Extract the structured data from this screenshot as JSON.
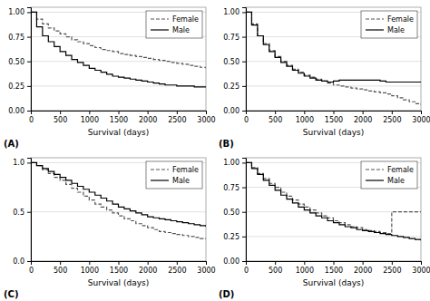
{
  "chart_data": [
    {
      "type": "step",
      "title": "(A)",
      "xlabel": "Survival (days)",
      "x": [
        0,
        100,
        200,
        300,
        400,
        500,
        600,
        700,
        800,
        900,
        1000,
        1100,
        1200,
        1300,
        1400,
        1500,
        1600,
        1700,
        1800,
        1900,
        2000,
        2100,
        2200,
        2300,
        2400,
        2500,
        2600,
        2700,
        2800,
        2900,
        3000
      ],
      "series": [
        {
          "name": "Female",
          "color": "#555555",
          "line_style": "dashed",
          "values": [
            1.0,
            0.93,
            0.88,
            0.84,
            0.81,
            0.78,
            0.75,
            0.72,
            0.7,
            0.68,
            0.66,
            0.64,
            0.62,
            0.61,
            0.6,
            0.58,
            0.57,
            0.56,
            0.55,
            0.54,
            0.53,
            0.52,
            0.51,
            0.5,
            0.49,
            0.48,
            0.47,
            0.46,
            0.45,
            0.44,
            0.43
          ]
        },
        {
          "name": "Male",
          "color": "#000000",
          "line_style": "solid",
          "values": [
            1.0,
            0.85,
            0.76,
            0.7,
            0.65,
            0.6,
            0.56,
            0.52,
            0.49,
            0.46,
            0.43,
            0.41,
            0.39,
            0.37,
            0.35,
            0.34,
            0.33,
            0.32,
            0.31,
            0.3,
            0.29,
            0.28,
            0.27,
            0.26,
            0.26,
            0.25,
            0.25,
            0.25,
            0.24,
            0.24,
            0.24
          ]
        }
      ],
      "xlim": [
        0,
        3000
      ],
      "xticks": [
        0,
        500,
        1000,
        1500,
        2000,
        2500,
        3000
      ],
      "ylim": [
        0,
        1.05
      ],
      "yticks": [
        {
          "value": 0.0,
          "label": "0.00"
        },
        {
          "value": 0.25,
          "label": "0.25"
        },
        {
          "value": 0.5,
          "label": "0.50"
        },
        {
          "value": 0.75,
          "label": "0.75"
        },
        {
          "value": 1.0,
          "label": "1.00"
        }
      ],
      "grid": true,
      "legend": "upper-right"
    },
    {
      "type": "step",
      "title": "(B)",
      "xlabel": "Survival (days)",
      "x": [
        0,
        100,
        200,
        300,
        400,
        500,
        600,
        700,
        800,
        900,
        1000,
        1100,
        1200,
        1300,
        1400,
        1500,
        1600,
        1700,
        1800,
        1900,
        2000,
        2100,
        2200,
        2300,
        2400,
        2500,
        2600,
        2700,
        2800,
        2900,
        3000
      ],
      "series": [
        {
          "name": "Female",
          "color": "#555555",
          "line_style": "dashed",
          "values": [
            1.0,
            0.88,
            0.76,
            0.68,
            0.61,
            0.55,
            0.5,
            0.46,
            0.42,
            0.39,
            0.36,
            0.34,
            0.32,
            0.3,
            0.28,
            0.26,
            0.25,
            0.24,
            0.23,
            0.22,
            0.21,
            0.2,
            0.19,
            0.18,
            0.17,
            0.15,
            0.13,
            0.11,
            0.09,
            0.07,
            0.06
          ]
        },
        {
          "name": "Male",
          "color": "#000000",
          "line_style": "solid",
          "values": [
            1.0,
            0.87,
            0.76,
            0.67,
            0.6,
            0.54,
            0.49,
            0.45,
            0.41,
            0.38,
            0.35,
            0.33,
            0.31,
            0.3,
            0.29,
            0.3,
            0.31,
            0.31,
            0.31,
            0.31,
            0.31,
            0.31,
            0.31,
            0.3,
            0.29,
            0.29,
            0.29,
            0.29,
            0.29,
            0.29,
            0.29
          ]
        }
      ],
      "xlim": [
        0,
        3000
      ],
      "xticks": [
        0,
        500,
        1000,
        1500,
        2000,
        2500,
        3000
      ],
      "ylim": [
        0,
        1.05
      ],
      "yticks": [
        {
          "value": 0.0,
          "label": "0.00"
        },
        {
          "value": 0.25,
          "label": "0.25"
        },
        {
          "value": 0.5,
          "label": "0.50"
        },
        {
          "value": 0.75,
          "label": "0.75"
        },
        {
          "value": 1.0,
          "label": "1.00"
        }
      ],
      "grid": true,
      "legend": "upper-right"
    },
    {
      "type": "step",
      "title": "(C)",
      "xlabel": "Survival (days)",
      "x": [
        0,
        100,
        200,
        300,
        400,
        500,
        600,
        700,
        800,
        900,
        1000,
        1100,
        1200,
        1300,
        1400,
        1500,
        1600,
        1700,
        1800,
        1900,
        2000,
        2100,
        2200,
        2300,
        2400,
        2500,
        2600,
        2700,
        2800,
        2900,
        3000
      ],
      "series": [
        {
          "name": "Female",
          "color": "#555555",
          "line_style": "dashed",
          "values": [
            1.0,
            0.97,
            0.93,
            0.89,
            0.85,
            0.82,
            0.78,
            0.74,
            0.7,
            0.66,
            0.62,
            0.58,
            0.55,
            0.52,
            0.49,
            0.46,
            0.43,
            0.41,
            0.38,
            0.36,
            0.34,
            0.32,
            0.3,
            0.29,
            0.28,
            0.27,
            0.26,
            0.25,
            0.24,
            0.23,
            0.22
          ]
        },
        {
          "name": "Male",
          "color": "#000000",
          "line_style": "solid",
          "values": [
            1.0,
            0.97,
            0.94,
            0.91,
            0.88,
            0.85,
            0.82,
            0.79,
            0.76,
            0.73,
            0.7,
            0.67,
            0.64,
            0.61,
            0.58,
            0.55,
            0.53,
            0.51,
            0.49,
            0.47,
            0.45,
            0.44,
            0.43,
            0.42,
            0.41,
            0.4,
            0.39,
            0.38,
            0.37,
            0.36,
            0.35
          ]
        }
      ],
      "xlim": [
        0,
        3000
      ],
      "xticks": [
        0,
        500,
        1000,
        1500,
        2000,
        2500,
        3000
      ],
      "ylim": [
        0,
        1.05
      ],
      "yticks": [
        {
          "value": 0.0,
          "label": "0.0"
        },
        {
          "value": 0.5,
          "label": "0.5"
        },
        {
          "value": 1.0,
          "label": "1.0"
        }
      ],
      "grid": true,
      "legend": "upper-right"
    },
    {
      "type": "step",
      "title": "(D)",
      "xlabel": "Survival (days)",
      "x": [
        0,
        100,
        200,
        300,
        400,
        500,
        600,
        700,
        800,
        900,
        1000,
        1100,
        1200,
        1300,
        1400,
        1500,
        1600,
        1700,
        1800,
        1900,
        2000,
        2100,
        2200,
        2300,
        2400,
        2500,
        2600,
        2700,
        2800,
        2900,
        3000
      ],
      "series": [
        {
          "name": "Female",
          "color": "#555555",
          "line_style": "dashed",
          "values": [
            1.0,
            0.95,
            0.89,
            0.84,
            0.79,
            0.75,
            0.7,
            0.66,
            0.62,
            0.58,
            0.55,
            0.52,
            0.49,
            0.46,
            0.44,
            0.41,
            0.39,
            0.37,
            0.35,
            0.34,
            0.32,
            0.31,
            0.3,
            0.29,
            0.28,
            0.5,
            0.5,
            0.5,
            0.5,
            0.5,
            0.5
          ]
        },
        {
          "name": "Male",
          "color": "#000000",
          "line_style": "solid",
          "values": [
            1.0,
            0.94,
            0.88,
            0.82,
            0.77,
            0.72,
            0.67,
            0.63,
            0.59,
            0.55,
            0.52,
            0.49,
            0.46,
            0.44,
            0.41,
            0.39,
            0.37,
            0.35,
            0.34,
            0.32,
            0.31,
            0.3,
            0.29,
            0.28,
            0.27,
            0.26,
            0.25,
            0.24,
            0.23,
            0.22,
            0.21
          ]
        }
      ],
      "xlim": [
        0,
        3000
      ],
      "xticks": [
        0,
        500,
        1000,
        1500,
        2000,
        2500,
        3000
      ],
      "ylim": [
        0,
        1.05
      ],
      "yticks": [
        {
          "value": 0.0,
          "label": "0.00"
        },
        {
          "value": 0.25,
          "label": "0.25"
        },
        {
          "value": 0.5,
          "label": "0.50"
        },
        {
          "value": 0.75,
          "label": "0.75"
        },
        {
          "value": 1.0,
          "label": "1.00"
        }
      ],
      "grid": true,
      "legend": "upper-right"
    }
  ]
}
